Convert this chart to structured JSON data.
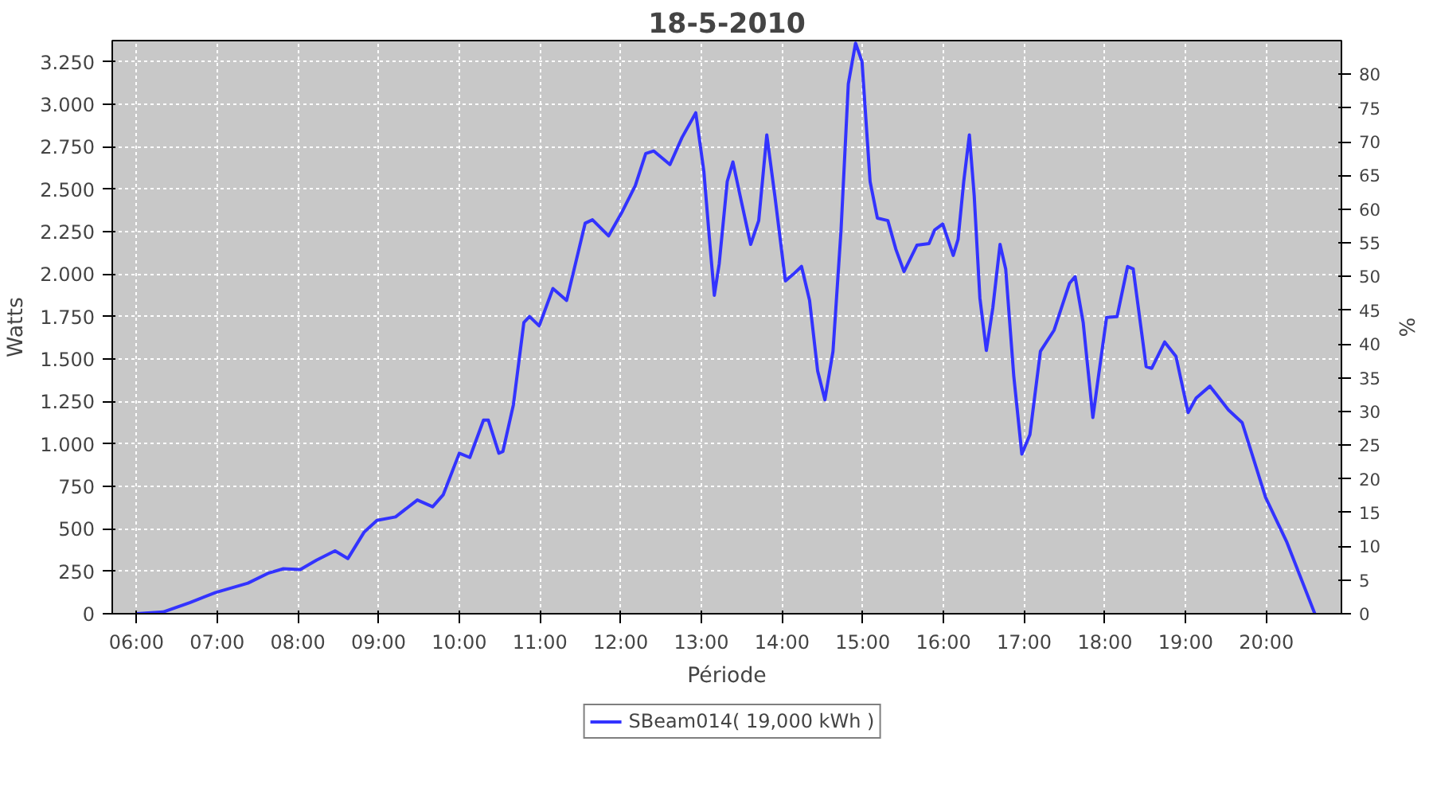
{
  "chart_data": {
    "type": "line",
    "title": "18-5-2010",
    "xlabel": "Période",
    "ylabel": "Watts",
    "y2label": "%",
    "xlim": [
      5.7,
      20.93
    ],
    "ylim": [
      0,
      3375
    ],
    "y2lim": [
      0,
      85
    ],
    "xticks": [
      {
        "value": 6,
        "label": "06:00"
      },
      {
        "value": 7,
        "label": "07:00"
      },
      {
        "value": 8,
        "label": "08:00"
      },
      {
        "value": 9,
        "label": "09:00"
      },
      {
        "value": 10,
        "label": "10:00"
      },
      {
        "value": 11,
        "label": "11:00"
      },
      {
        "value": 12,
        "label": "12:00"
      },
      {
        "value": 13,
        "label": "13:00"
      },
      {
        "value": 14,
        "label": "14:00"
      },
      {
        "value": 15,
        "label": "15:00"
      },
      {
        "value": 16,
        "label": "16:00"
      },
      {
        "value": 17,
        "label": "17:00"
      },
      {
        "value": 18,
        "label": "18:00"
      },
      {
        "value": 19,
        "label": "19:00"
      },
      {
        "value": 20,
        "label": "20:00"
      }
    ],
    "yticks": [
      0,
      250,
      500,
      750,
      {
        "value": 1000,
        "label": "1.000"
      },
      {
        "value": 1250,
        "label": "1.250"
      },
      {
        "value": 1500,
        "label": "1.500"
      },
      {
        "value": 1750,
        "label": "1.750"
      },
      {
        "value": 2000,
        "label": "2.000"
      },
      {
        "value": 2250,
        "label": "2.250"
      },
      {
        "value": 2500,
        "label": "2.500"
      },
      {
        "value": 2750,
        "label": "2.750"
      },
      {
        "value": 3000,
        "label": "3.000"
      },
      {
        "value": 3250,
        "label": "3.250"
      }
    ],
    "y2ticks": [
      0,
      5,
      10,
      15,
      20,
      25,
      30,
      35,
      40,
      45,
      50,
      55,
      60,
      65,
      70,
      75,
      80
    ],
    "grid": true,
    "legend": "bottom",
    "line_style": "solid",
    "series": [
      {
        "name": "SBeam014( 19,000 kWh )",
        "color": "#3333ff",
        "x": [
          6.0,
          6.33,
          6.66,
          6.98,
          7.38,
          7.64,
          7.82,
          8.03,
          8.23,
          8.46,
          8.62,
          8.82,
          8.98,
          9.21,
          9.48,
          9.67,
          9.8,
          10.0,
          10.13,
          10.3,
          10.36,
          10.49,
          10.54,
          10.67,
          10.8,
          10.87,
          10.99,
          11.16,
          11.33,
          11.56,
          11.65,
          11.85,
          12.01,
          12.18,
          12.31,
          12.41,
          12.61,
          12.76,
          12.93,
          13.03,
          13.1,
          13.16,
          13.22,
          13.32,
          13.39,
          13.48,
          13.61,
          13.71,
          13.81,
          13.91,
          14.04,
          14.14,
          14.24,
          14.34,
          14.44,
          14.53,
          14.63,
          14.73,
          14.82,
          14.91,
          14.99,
          15.09,
          15.18,
          15.31,
          15.41,
          15.51,
          15.67,
          15.82,
          15.89,
          15.99,
          16.12,
          16.18,
          16.25,
          16.32,
          16.38,
          16.45,
          16.53,
          16.61,
          16.7,
          16.77,
          16.87,
          16.97,
          17.07,
          17.2,
          17.37,
          17.56,
          17.63,
          17.73,
          17.85,
          17.92,
          18.02,
          18.15,
          18.28,
          18.35,
          18.51,
          18.58,
          18.74,
          18.88,
          19.03,
          19.13,
          19.3,
          19.53,
          19.7,
          19.99,
          20.25,
          20.6
        ],
        "values": [
          0,
          10,
          65,
          125,
          180,
          240,
          265,
          260,
          315,
          370,
          325,
          480,
          550,
          570,
          670,
          630,
          700,
          945,
          920,
          1140,
          1140,
          945,
          955,
          1230,
          1715,
          1750,
          1695,
          1915,
          1845,
          2300,
          2320,
          2225,
          2360,
          2520,
          2710,
          2725,
          2645,
          2805,
          2950,
          2605,
          2205,
          1875,
          2060,
          2545,
          2660,
          2460,
          2175,
          2315,
          2820,
          2460,
          1960,
          2000,
          2045,
          1845,
          1430,
          1260,
          1545,
          2260,
          3120,
          3360,
          3250,
          2545,
          2330,
          2315,
          2145,
          2015,
          2170,
          2180,
          2260,
          2295,
          2110,
          2205,
          2545,
          2820,
          2460,
          1860,
          1550,
          1800,
          2175,
          2030,
          1400,
          940,
          1055,
          1545,
          1670,
          1945,
          1985,
          1715,
          1155,
          1400,
          1745,
          1750,
          2045,
          2030,
          1455,
          1445,
          1600,
          1515,
          1185,
          1270,
          1340,
          1200,
          1125,
          685,
          425,
          0
        ]
      }
    ]
  }
}
